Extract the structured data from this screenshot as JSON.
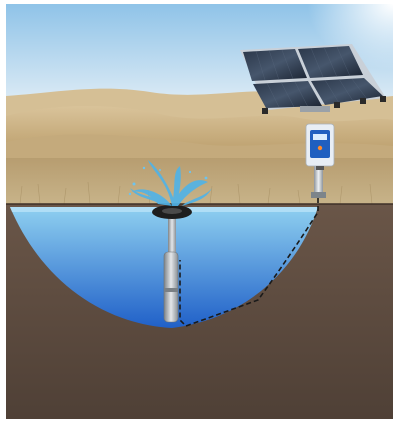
{
  "scene": {
    "components": [
      "solar-panel-array",
      "pump-controller",
      "submersible-pump",
      "float-ring",
      "water-fountain",
      "underground-cable",
      "pond",
      "desert-dunes",
      "soil-cross-section"
    ]
  },
  "colors": {
    "sky_top": "#8fc3e8",
    "sky_horizon": "#eef4f8",
    "sand_light": "#d9c39a",
    "sand_dark": "#b89a66",
    "grass": "#c8b48a",
    "soil": "#6a5648",
    "soil_dark": "#4f4036",
    "water_surface": "#8fd0f0",
    "water_deep": "#2060c8",
    "panel": "#1a2230",
    "panel_frame": "#c9d0d8",
    "controller_body": "#e8eef5",
    "controller_screen": "#1f5fc0",
    "pump": "#b8bdc2",
    "cable": "#1a1a1a"
  }
}
